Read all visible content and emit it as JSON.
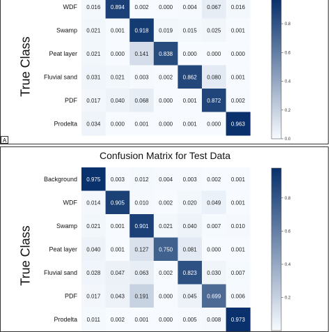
{
  "chart_data": [
    {
      "type": "heatmap",
      "panel": "A",
      "title": "",
      "ylabel": "True Class",
      "rows": [
        "WDF",
        "Swamp",
        "Peat layer",
        "Fluvial sand",
        "PDF",
        "Prodelta"
      ],
      "values": [
        [
          0.016,
          0.894,
          0.002,
          0.0,
          0.004,
          0.067,
          0.016
        ],
        [
          0.021,
          0.001,
          0.918,
          0.019,
          0.015,
          0.025,
          0.001
        ],
        [
          0.021,
          0.0,
          0.141,
          0.838,
          0.0,
          0.0,
          0.0
        ],
        [
          0.031,
          0.021,
          0.003,
          0.002,
          0.862,
          0.08,
          0.001
        ],
        [
          0.017,
          0.04,
          0.068,
          0.0,
          0.001,
          0.872,
          0.002
        ],
        [
          0.034,
          0.0,
          0.001,
          0.0,
          0.001,
          0.0,
          0.963
        ]
      ],
      "colorbar_ticks": [
        "0.8",
        "0.6",
        "0.4",
        "0.2",
        "0.0"
      ],
      "colorbar_tick_values": [
        0.8,
        0.6,
        0.4,
        0.2,
        0.0
      ],
      "colorbar_range": [
        0,
        0.97
      ]
    },
    {
      "type": "heatmap",
      "panel": "",
      "title": "Confusion Matrix for Test Data",
      "ylabel": "True Class",
      "rows": [
        "Background",
        "WDF",
        "Swamp",
        "Peat layer",
        "Fluvial sand",
        "PDF",
        "Prodelta"
      ],
      "values": [
        [
          0.975,
          0.003,
          0.012,
          0.004,
          0.003,
          0.002,
          0.001
        ],
        [
          0.014,
          0.905,
          0.01,
          0.002,
          0.02,
          0.049,
          0.001
        ],
        [
          0.021,
          0.001,
          0.901,
          0.021,
          0.04,
          0.007,
          0.01
        ],
        [
          0.04,
          0.001,
          0.127,
          0.75,
          0.081,
          0.0,
          0.001
        ],
        [
          0.028,
          0.047,
          0.063,
          0.002,
          0.823,
          0.03,
          0.007
        ],
        [
          0.017,
          0.043,
          0.191,
          0.0,
          0.045,
          0.699,
          0.006
        ],
        [
          0.011,
          0.002,
          0.001,
          0.0,
          0.005,
          0.008,
          0.973
        ]
      ],
      "colorbar_ticks": [
        "0.8",
        "0.6",
        "0.4",
        "0.2"
      ],
      "colorbar_tick_values": [
        0.8,
        0.6,
        0.4,
        0.2
      ],
      "colorbar_range": [
        0,
        0.98
      ]
    }
  ],
  "panel_tags": {
    "a": "A"
  },
  "colors": {
    "low": "#f7fbff",
    "high": "#08306b"
  }
}
